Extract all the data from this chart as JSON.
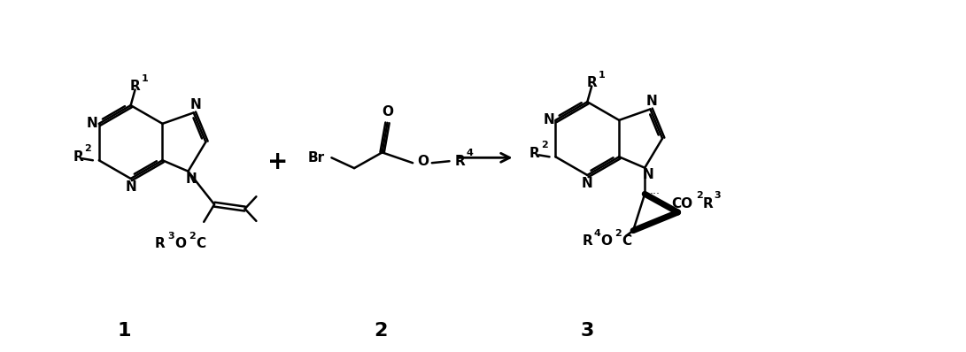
{
  "fig_width": 10.91,
  "fig_height": 3.98,
  "dpi": 100,
  "label1": "1",
  "label2": "2",
  "label3": "3"
}
